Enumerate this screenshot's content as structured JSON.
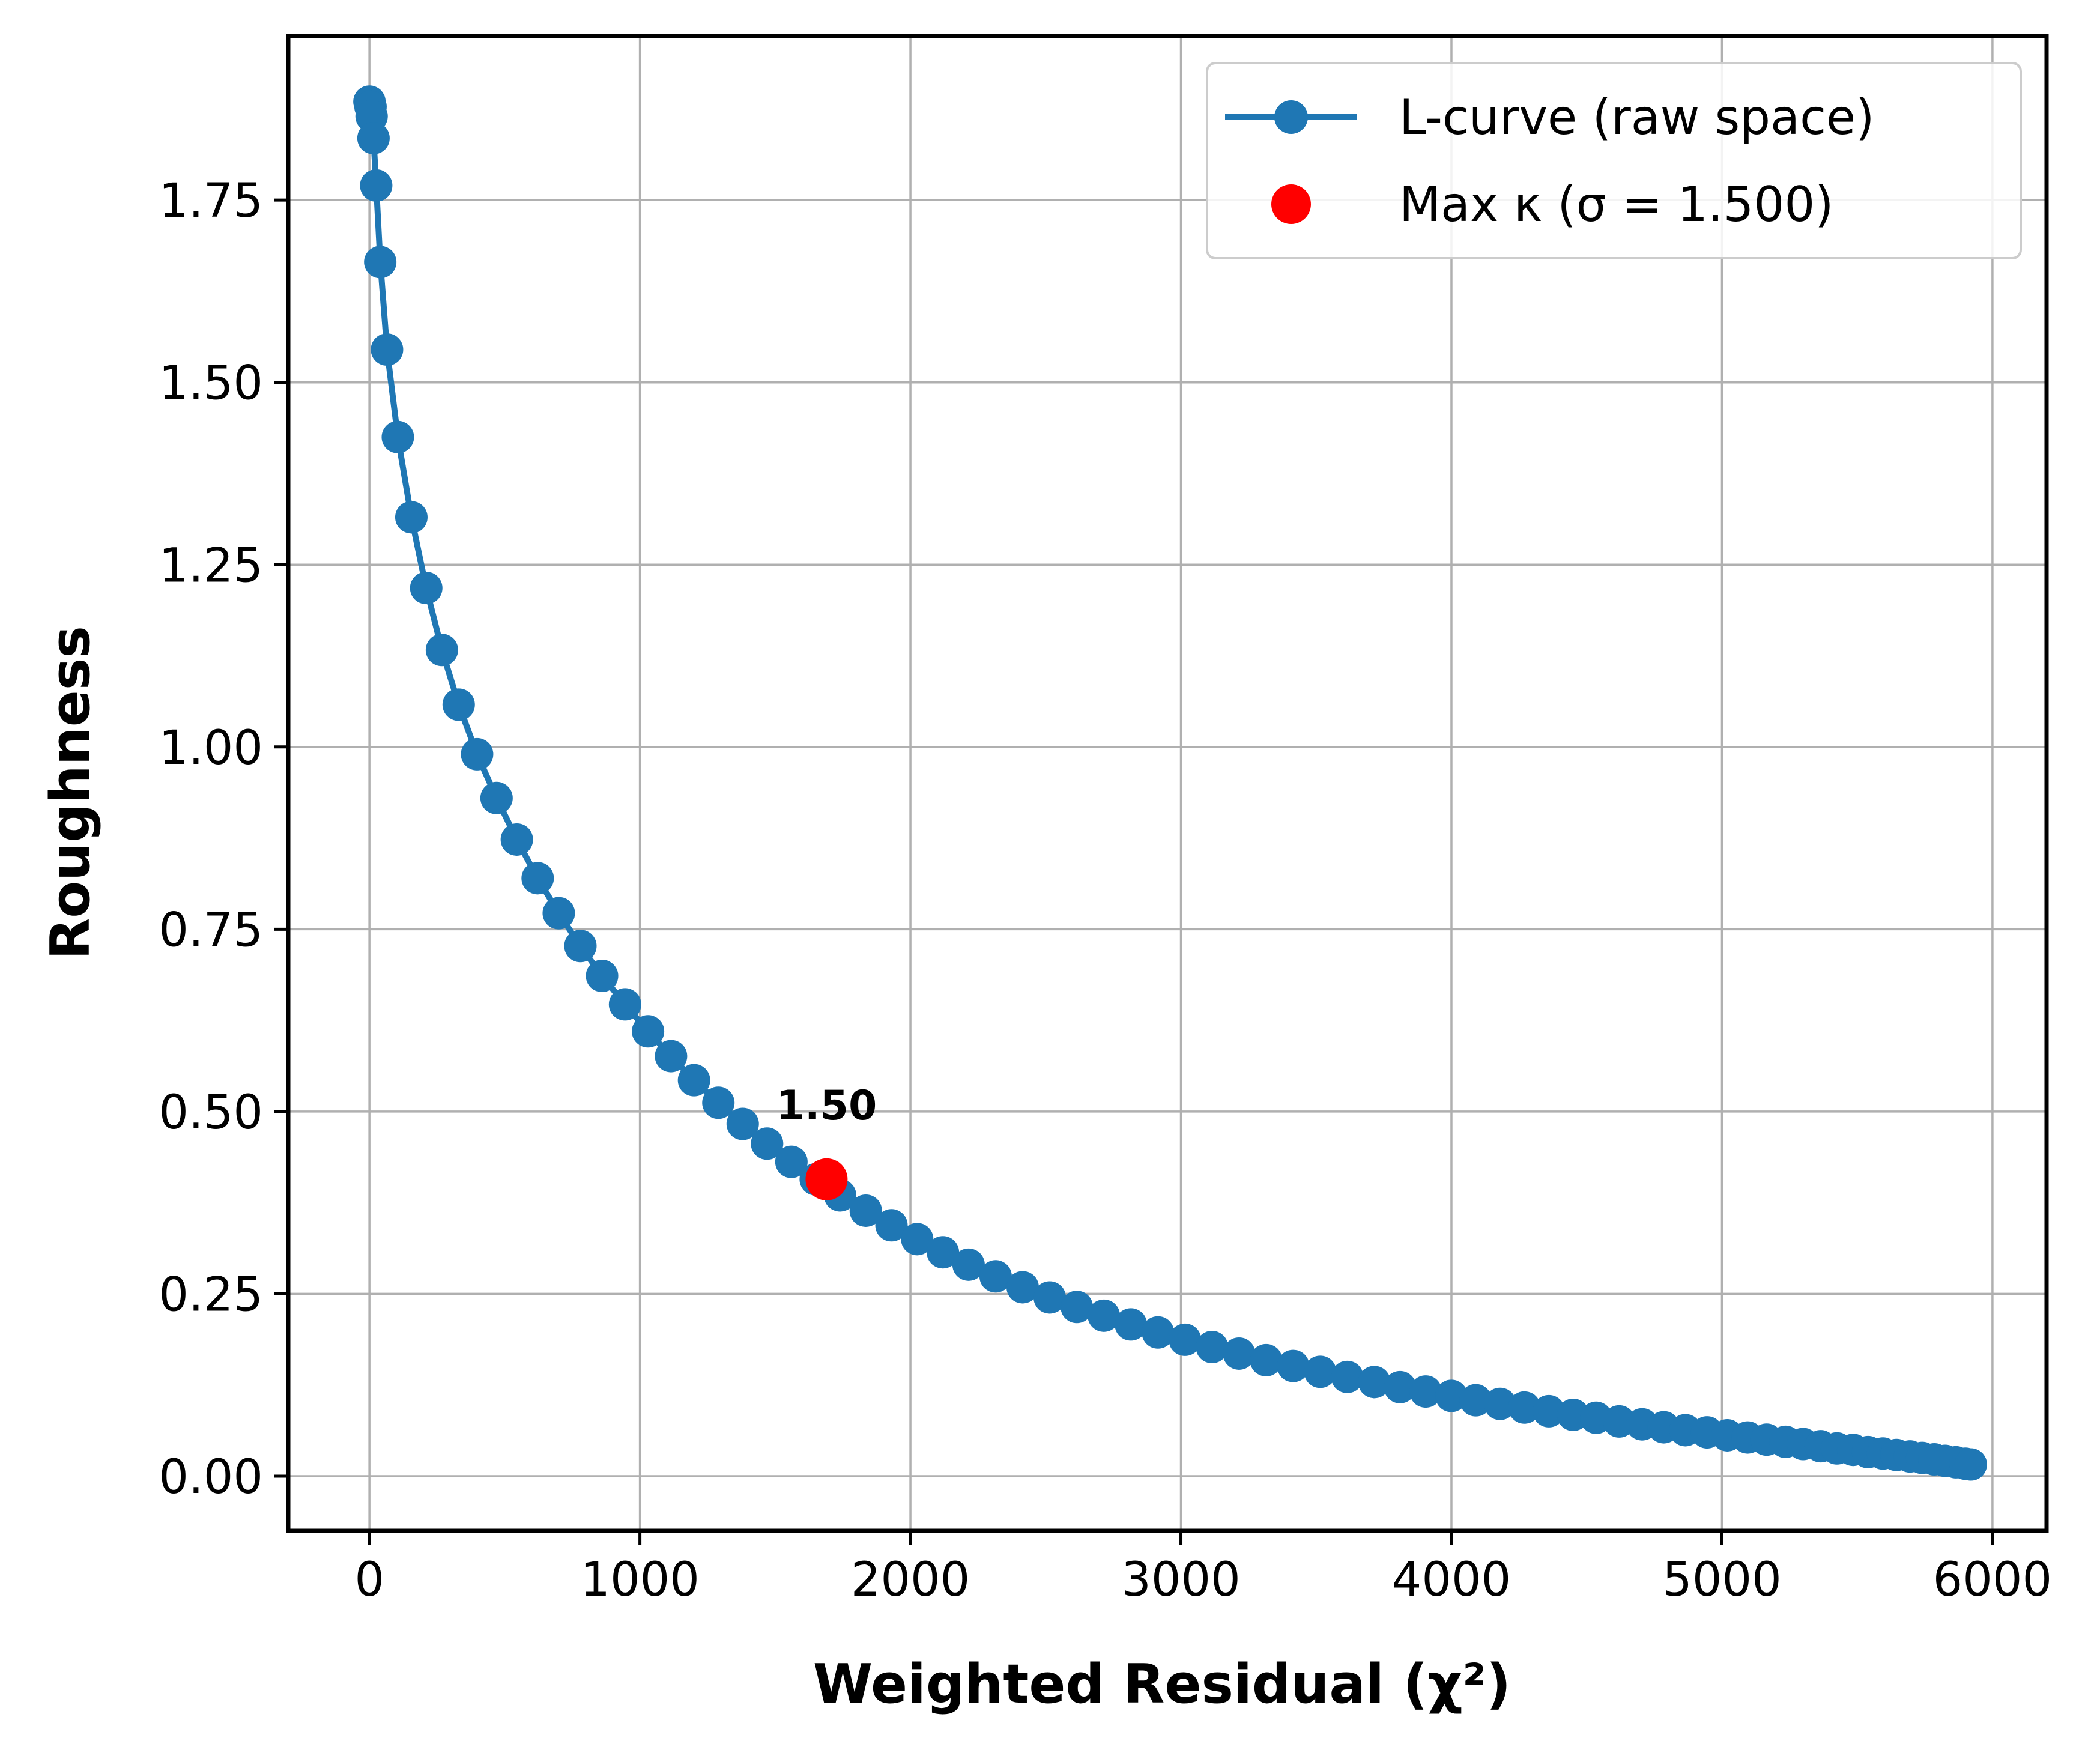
{
  "chart_data": {
    "type": "line",
    "title": "",
    "xlabel": "Weighted Residual (χ²)",
    "ylabel": "Roughness",
    "xlim": [
      -300,
      6200
    ],
    "ylim": [
      -0.075,
      1.975
    ],
    "grid": true,
    "legend_position": "top-right",
    "x_ticks": [
      0,
      1000,
      2000,
      3000,
      4000,
      5000,
      6000
    ],
    "x_tick_labels": [
      "0",
      "1000",
      "2000",
      "3000",
      "4000",
      "5000",
      "6000"
    ],
    "y_ticks": [
      0,
      0.25,
      0.5,
      0.75,
      1.0,
      1.25,
      1.5,
      1.75
    ],
    "y_tick_labels": [
      "0.00",
      "0.25",
      "0.50",
      "0.75",
      "1.00",
      "1.25",
      "1.50",
      "1.75"
    ],
    "colors": {
      "series": "#1f77b4",
      "highlight": "#ff0000",
      "grid": "#b0b0b0"
    },
    "series": [
      {
        "name": "L-curve (raw space)",
        "marker": "circle",
        "points": [
          [
            0,
            1.885
          ],
          [
            4,
            1.878
          ],
          [
            8,
            1.865
          ],
          [
            15,
            1.835
          ],
          [
            25,
            1.77
          ],
          [
            40,
            1.665
          ],
          [
            65,
            1.545
          ],
          [
            105,
            1.425
          ],
          [
            155,
            1.315
          ],
          [
            210,
            1.218
          ],
          [
            268,
            1.133
          ],
          [
            330,
            1.058
          ],
          [
            398,
            0.99
          ],
          [
            470,
            0.93
          ],
          [
            545,
            0.873
          ],
          [
            622,
            0.82
          ],
          [
            700,
            0.772
          ],
          [
            780,
            0.727
          ],
          [
            860,
            0.686
          ],
          [
            945,
            0.647
          ],
          [
            1030,
            0.61
          ],
          [
            1115,
            0.576
          ],
          [
            1200,
            0.543
          ],
          [
            1290,
            0.512
          ],
          [
            1380,
            0.483
          ],
          [
            1470,
            0.456
          ],
          [
            1560,
            0.431
          ],
          [
            1650,
            0.407
          ],
          [
            1740,
            0.385
          ],
          [
            1835,
            0.364
          ],
          [
            1930,
            0.344
          ],
          [
            2025,
            0.325
          ],
          [
            2120,
            0.307
          ],
          [
            2215,
            0.29
          ],
          [
            2315,
            0.274
          ],
          [
            2415,
            0.259
          ],
          [
            2515,
            0.245
          ],
          [
            2615,
            0.232
          ],
          [
            2715,
            0.22
          ],
          [
            2815,
            0.208
          ],
          [
            2915,
            0.197
          ],
          [
            3015,
            0.187
          ],
          [
            3115,
            0.177
          ],
          [
            3215,
            0.168
          ],
          [
            3315,
            0.159
          ],
          [
            3415,
            0.151
          ],
          [
            3515,
            0.143
          ],
          [
            3615,
            0.136
          ],
          [
            3715,
            0.129
          ],
          [
            3810,
            0.122
          ],
          [
            3905,
            0.116
          ],
          [
            4000,
            0.11
          ],
          [
            4090,
            0.104
          ],
          [
            4180,
            0.099
          ],
          [
            4270,
            0.094
          ],
          [
            4360,
            0.089
          ],
          [
            4450,
            0.084
          ],
          [
            4535,
            0.08
          ],
          [
            4620,
            0.075
          ],
          [
            4705,
            0.071
          ],
          [
            4785,
            0.067
          ],
          [
            4865,
            0.063
          ],
          [
            4945,
            0.06
          ],
          [
            5020,
            0.056
          ],
          [
            5095,
            0.053
          ],
          [
            5165,
            0.05
          ],
          [
            5235,
            0.047
          ],
          [
            5300,
            0.044
          ],
          [
            5365,
            0.041
          ],
          [
            5425,
            0.038
          ],
          [
            5485,
            0.036
          ],
          [
            5540,
            0.033
          ],
          [
            5595,
            0.031
          ],
          [
            5645,
            0.029
          ],
          [
            5695,
            0.027
          ],
          [
            5740,
            0.025
          ],
          [
            5785,
            0.023
          ],
          [
            5825,
            0.021
          ],
          [
            5865,
            0.019
          ],
          [
            5900,
            0.017
          ],
          [
            5920,
            0.016
          ]
        ]
      }
    ],
    "highlight": {
      "name": "Max κ (σ = 1.500)",
      "x": 1690,
      "y": 0.407,
      "annotation": "1.50"
    }
  }
}
